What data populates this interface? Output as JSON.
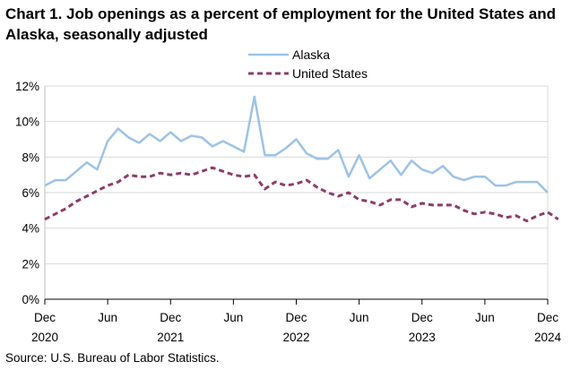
{
  "chart_data": {
    "type": "line",
    "title": "Chart 1. Job openings as a percent of employment for the United States and Alaska, seasonally adjusted",
    "xlabel": "",
    "ylabel": "",
    "ylim": [
      0,
      12
    ],
    "yticks": [
      "0%",
      "2%",
      "4%",
      "6%",
      "8%",
      "10%",
      "12%"
    ],
    "yticks_values": [
      0,
      2,
      4,
      6,
      8,
      10,
      12
    ],
    "xticks": [
      {
        "line1": "Dec",
        "line2": "2020",
        "index": 0
      },
      {
        "line1": "Jun",
        "line2": "",
        "index": 6
      },
      {
        "line1": "Dec",
        "line2": "2021",
        "index": 12
      },
      {
        "line1": "Jun",
        "line2": "",
        "index": 18
      },
      {
        "line1": "Dec",
        "line2": "2022",
        "index": 24
      },
      {
        "line1": "Jun",
        "line2": "",
        "index": 30
      },
      {
        "line1": "Dec",
        "line2": "2023",
        "index": 36
      },
      {
        "line1": "Jun",
        "line2": "",
        "index": 42
      },
      {
        "line1": "Dec",
        "line2": "2024",
        "index": 48
      }
    ],
    "grid": true,
    "legend_position": "top-center",
    "series": [
      {
        "name": "Alaska",
        "color": "#9dc3e6",
        "style": "solid",
        "values": [
          6.4,
          6.7,
          6.7,
          7.2,
          7.7,
          7.3,
          8.9,
          9.6,
          9.1,
          8.8,
          9.3,
          8.9,
          9.4,
          8.9,
          9.2,
          9.1,
          8.6,
          8.9,
          8.6,
          8.3,
          11.4,
          8.1,
          8.1,
          8.5,
          9.0,
          8.2,
          7.9,
          7.9,
          8.4,
          6.9,
          8.1,
          6.8,
          7.3,
          7.8,
          7.0,
          7.8,
          7.3,
          7.1,
          7.5,
          6.9,
          6.7,
          6.9,
          6.9,
          6.4,
          6.4,
          6.6,
          6.6,
          6.6,
          6.0
        ]
      },
      {
        "name": "United States",
        "color": "#8e3c6b",
        "style": "dashed",
        "values": [
          4.5,
          4.8,
          5.1,
          5.5,
          5.8,
          6.1,
          6.4,
          6.6,
          7.0,
          6.9,
          6.9,
          7.1,
          7.0,
          7.1,
          7.0,
          7.2,
          7.4,
          7.2,
          7.0,
          6.9,
          7.0,
          6.2,
          6.6,
          6.4,
          6.5,
          6.7,
          6.3,
          6.0,
          5.8,
          6.0,
          5.6,
          5.5,
          5.3,
          5.6,
          5.6,
          5.2,
          5.4,
          5.3,
          5.3,
          5.3,
          5.0,
          4.8,
          4.9,
          4.8,
          4.6,
          4.7,
          4.4,
          4.7,
          4.9,
          4.5
        ]
      }
    ]
  },
  "footer": {
    "source": "Source: U.S. Bureau of Labor Statistics."
  }
}
